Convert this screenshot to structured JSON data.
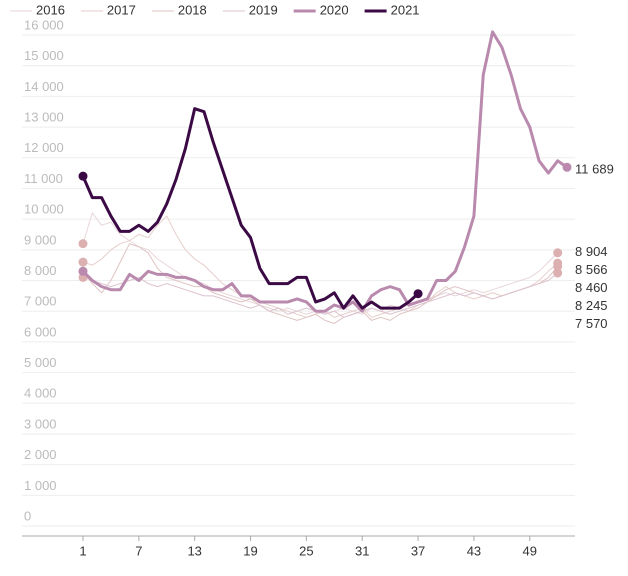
{
  "chart_data": {
    "type": "line",
    "x": [
      1,
      2,
      3,
      4,
      5,
      6,
      7,
      8,
      9,
      10,
      11,
      12,
      13,
      14,
      15,
      16,
      17,
      18,
      19,
      20,
      21,
      22,
      23,
      24,
      25,
      26,
      27,
      28,
      29,
      30,
      31,
      32,
      33,
      34,
      35,
      36,
      37,
      38,
      39,
      40,
      41,
      42,
      43,
      44,
      45,
      46,
      47,
      48,
      49,
      50,
      51,
      52,
      53
    ],
    "xlim": [
      1,
      53
    ],
    "xticks": [
      1,
      7,
      13,
      19,
      25,
      31,
      37,
      43,
      49
    ],
    "ylim": [
      0,
      16000
    ],
    "yticks": [
      {
        "value": 0,
        "label": "0"
      },
      {
        "value": 1000,
        "label": "1 000"
      },
      {
        "value": 2000,
        "label": "2 000"
      },
      {
        "value": 3000,
        "label": "3 000"
      },
      {
        "value": 4000,
        "label": "4 000"
      },
      {
        "value": 5000,
        "label": "5 000"
      },
      {
        "value": 6000,
        "label": "6 000"
      },
      {
        "value": 7000,
        "label": "7 000"
      },
      {
        "value": 8000,
        "label": "8 000"
      },
      {
        "value": 9000,
        "label": "9 000"
      },
      {
        "value": 10000,
        "label": "10 000"
      },
      {
        "value": 11000,
        "label": "11 000"
      },
      {
        "value": 12000,
        "label": "12 000"
      },
      {
        "value": 13000,
        "label": "13 000"
      },
      {
        "value": 14000,
        "label": "14 000"
      },
      {
        "value": 15000,
        "label": "15 000"
      },
      {
        "value": 16000,
        "label": "16 000"
      }
    ],
    "grid": true,
    "series": [
      {
        "name": "2016",
        "color": "#e8d6da",
        "width": 1,
        "values": [
          9200,
          10200,
          9800,
          9900,
          9500,
          9300,
          9100,
          9000,
          8700,
          8500,
          8300,
          8100,
          8000,
          7900,
          7700,
          7600,
          7500,
          7400,
          7300,
          7200,
          7100,
          7000,
          7100,
          7000,
          6900,
          7000,
          6900,
          7000,
          7100,
          7000,
          6900,
          7100,
          7000,
          7200,
          7100,
          7200,
          7300,
          7400,
          7500,
          7600,
          7500,
          7600,
          7700,
          7600,
          7700,
          7800,
          7900,
          8000,
          8100,
          8300,
          8600,
          8904,
          null
        ],
        "value_labels": [
          null,
          null,
          null,
          null,
          null,
          null,
          null,
          null,
          null,
          null,
          null,
          null,
          null,
          null,
          null,
          null,
          null,
          null,
          null,
          null,
          null,
          null,
          null,
          null,
          null,
          null,
          null,
          null,
          null,
          null,
          null,
          null,
          null,
          null,
          null,
          null,
          null,
          null,
          null,
          null,
          null,
          null,
          null,
          null,
          null,
          null,
          null,
          null,
          null,
          null,
          null,
          "8 904",
          null
        ]
      },
      {
        "name": "2017",
        "color": "#e6cfcc",
        "width": 1,
        "values": [
          8600,
          8500,
          8700,
          9000,
          9200,
          9300,
          9500,
          9400,
          9800,
          10100,
          9500,
          9000,
          8700,
          8500,
          8200,
          7900,
          7700,
          7500,
          7400,
          7300,
          7200,
          7100,
          7000,
          6900,
          6800,
          6900,
          7000,
          6800,
          6900,
          7000,
          7100,
          6800,
          6900,
          7000,
          7100,
          7000,
          7200,
          7300,
          7600,
          7800,
          7600,
          7500,
          7400,
          7500,
          7600,
          7500,
          7600,
          7700,
          7800,
          8000,
          8300,
          8566,
          null
        ],
        "value_labels": [
          null,
          null,
          null,
          null,
          null,
          null,
          null,
          null,
          null,
          null,
          null,
          null,
          null,
          null,
          null,
          null,
          null,
          null,
          null,
          null,
          null,
          null,
          null,
          null,
          null,
          null,
          null,
          null,
          null,
          null,
          null,
          null,
          null,
          null,
          null,
          null,
          null,
          null,
          null,
          null,
          null,
          null,
          null,
          null,
          null,
          null,
          null,
          null,
          null,
          null,
          null,
          "8 566",
          null
        ]
      },
      {
        "name": "2018",
        "color": "#e0c3c3",
        "width": 1,
        "values": [
          8300,
          7900,
          7600,
          8000,
          8600,
          9200,
          9100,
          8900,
          8400,
          8100,
          8000,
          7900,
          7800,
          7800,
          7600,
          7500,
          7400,
          7300,
          7400,
          7200,
          7000,
          6900,
          6800,
          6700,
          6800,
          6900,
          6700,
          6600,
          6800,
          6900,
          7000,
          6700,
          6800,
          6700,
          6900,
          7000,
          7100,
          7300,
          7500,
          7700,
          7800,
          7700,
          7600,
          7500,
          7400,
          7500,
          7600,
          7700,
          7800,
          7900,
          8100,
          8460,
          null
        ],
        "value_labels": [
          null,
          null,
          null,
          null,
          null,
          null,
          null,
          null,
          null,
          null,
          null,
          null,
          null,
          null,
          null,
          null,
          null,
          null,
          null,
          null,
          null,
          null,
          null,
          null,
          null,
          null,
          null,
          null,
          null,
          null,
          null,
          null,
          null,
          null,
          null,
          null,
          null,
          null,
          null,
          null,
          null,
          null,
          null,
          null,
          null,
          null,
          null,
          null,
          null,
          null,
          null,
          "8 460",
          null
        ]
      },
      {
        "name": "2019",
        "color": "#dcc2cf",
        "width": 1,
        "values": [
          8100,
          8000,
          7900,
          7800,
          7900,
          8000,
          8100,
          7900,
          7800,
          7900,
          7800,
          7700,
          7600,
          7500,
          7500,
          7400,
          7300,
          7200,
          7100,
          7200,
          7000,
          7100,
          6900,
          7000,
          7100,
          7000,
          6900,
          7000,
          6800,
          6900,
          7000,
          7100,
          7000,
          6900,
          7000,
          7100,
          7200,
          7300,
          7400,
          7500,
          7600,
          7500,
          7600,
          7500,
          7400,
          7500,
          7600,
          7700,
          7800,
          7900,
          8000,
          8245,
          null
        ],
        "value_labels": [
          null,
          null,
          null,
          null,
          null,
          null,
          null,
          null,
          null,
          null,
          null,
          null,
          null,
          null,
          null,
          null,
          null,
          null,
          null,
          null,
          null,
          null,
          null,
          null,
          null,
          null,
          null,
          null,
          null,
          null,
          null,
          null,
          null,
          null,
          null,
          null,
          null,
          null,
          null,
          null,
          null,
          null,
          null,
          null,
          null,
          null,
          null,
          null,
          null,
          null,
          null,
          "8 245",
          null
        ]
      },
      {
        "name": "2020",
        "color": "#b98aad",
        "width": 3,
        "values": [
          8300,
          8000,
          7800,
          7700,
          7700,
          8200,
          8000,
          8300,
          8200,
          8200,
          8100,
          8100,
          8000,
          7800,
          7700,
          7700,
          7900,
          7500,
          7500,
          7300,
          7300,
          7300,
          7300,
          7400,
          7300,
          7000,
          7000,
          7200,
          7100,
          7300,
          7000,
          7500,
          7700,
          7800,
          7700,
          7200,
          7300,
          7400,
          8000,
          8000,
          8300,
          9100,
          10100,
          14700,
          16100,
          15600,
          14700,
          13600,
          13000,
          11900,
          11500,
          11900,
          11689
        ],
        "value_labels": [
          null,
          null,
          null,
          null,
          null,
          null,
          null,
          null,
          null,
          null,
          null,
          null,
          null,
          null,
          null,
          null,
          null,
          null,
          null,
          null,
          null,
          null,
          null,
          null,
          null,
          null,
          null,
          null,
          null,
          null,
          null,
          null,
          null,
          null,
          null,
          null,
          null,
          null,
          null,
          null,
          null,
          null,
          null,
          null,
          null,
          null,
          null,
          null,
          null,
          null,
          null,
          null,
          "11 689"
        ]
      },
      {
        "name": "2021",
        "color": "#3b0a45",
        "width": 3,
        "values": [
          11400,
          10700,
          10700,
          10100,
          9600,
          9600,
          9800,
          9600,
          9900,
          10500,
          11300,
          12300,
          13600,
          13500,
          12500,
          11600,
          10700,
          9800,
          9400,
          8400,
          7900,
          7900,
          7900,
          8100,
          8100,
          7300,
          7400,
          7600,
          7100,
          7500,
          7100,
          7300,
          7100,
          7100,
          7100,
          7300,
          7570,
          null,
          null,
          null,
          null,
          null,
          null,
          null,
          null,
          null,
          null,
          null,
          null,
          null,
          null,
          null,
          null
        ],
        "value_labels": [
          null,
          null,
          null,
          null,
          null,
          null,
          null,
          null,
          null,
          null,
          null,
          null,
          null,
          null,
          null,
          null,
          null,
          null,
          null,
          null,
          null,
          null,
          null,
          null,
          null,
          null,
          null,
          null,
          null,
          null,
          null,
          null,
          null,
          null,
          null,
          null,
          "7 570",
          null,
          null,
          null,
          null,
          null,
          null,
          null,
          null,
          null,
          null,
          null,
          null,
          null,
          null,
          null,
          null
        ]
      }
    ]
  }
}
